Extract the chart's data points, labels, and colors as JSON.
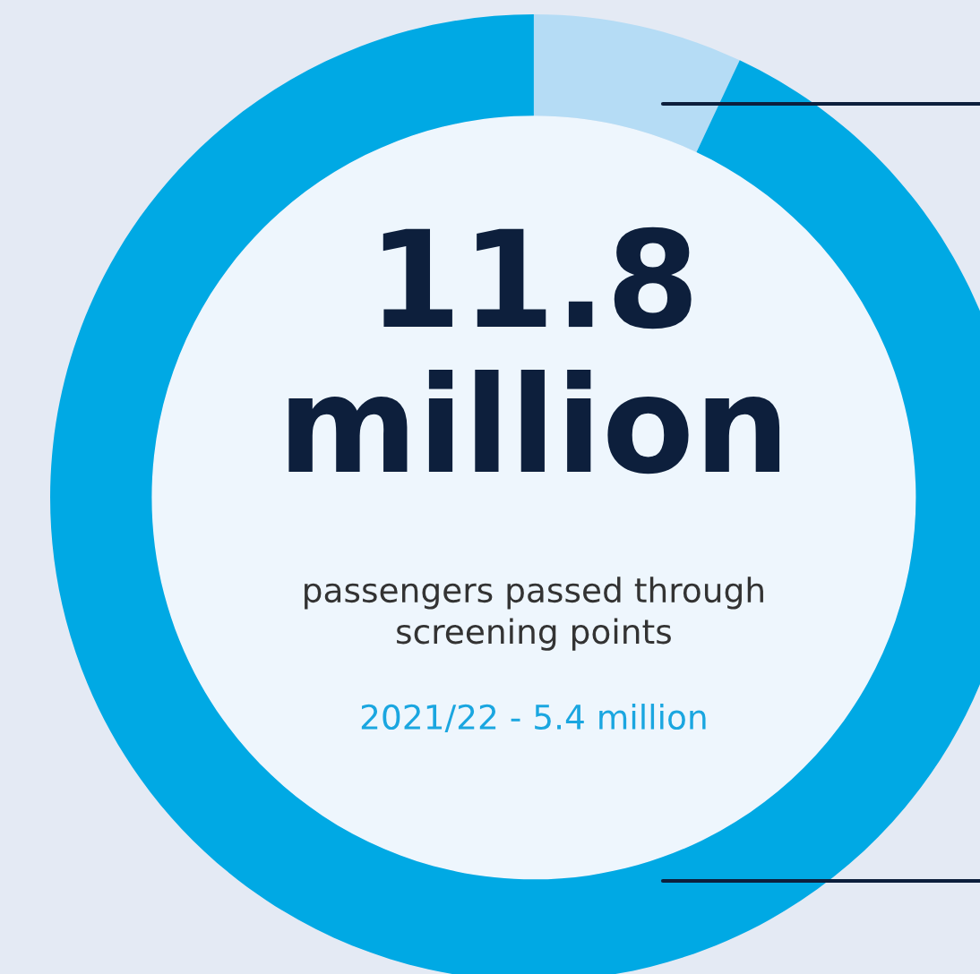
{
  "chart_data": {
    "type": "donut",
    "categories": [
      null,
      null
    ],
    "values": [
      7,
      93
    ],
    "colors": [
      "#b5dcf5",
      "#00a9e4"
    ],
    "annotations": [
      "11.8",
      "million",
      "passengers passed through\nscreening points",
      "2021/22 - 5.4 million"
    ]
  }
}
